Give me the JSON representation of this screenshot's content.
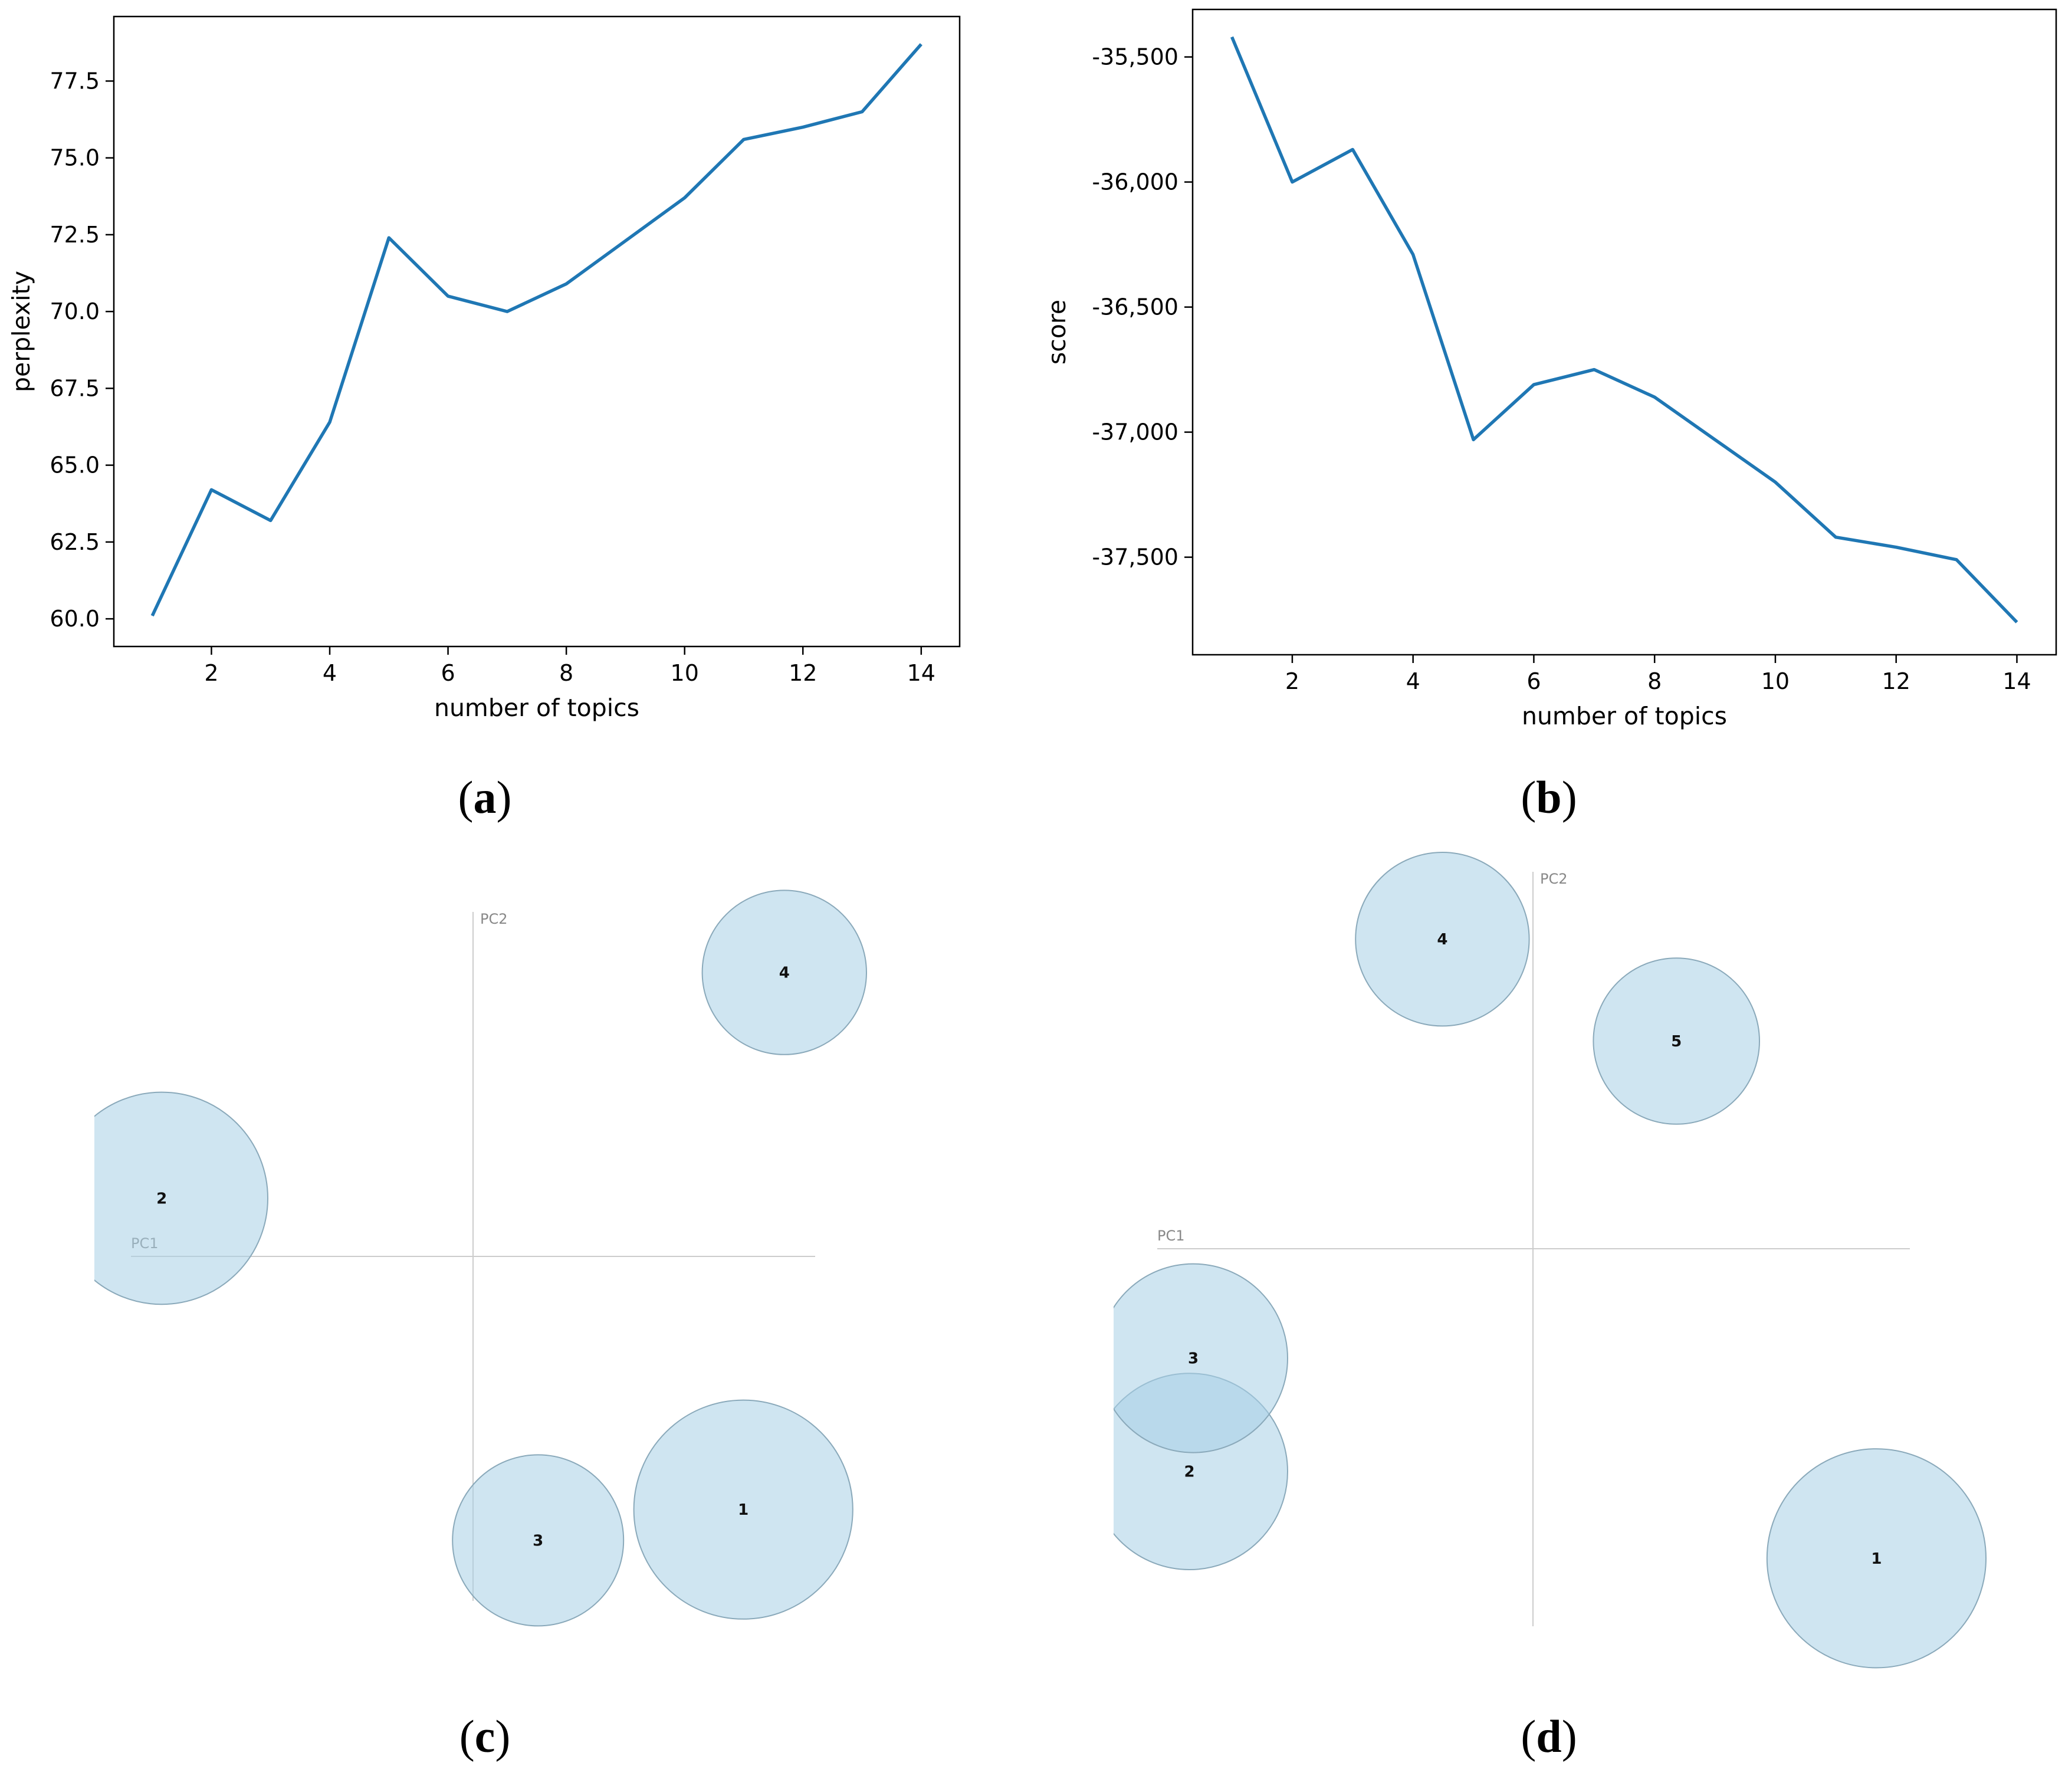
{
  "chart_data": [
    {
      "id": "a",
      "type": "line",
      "caption": "(a)",
      "caption_letter": "a",
      "xlabel": "number of topics",
      "ylabel": "perplexity",
      "xlim": [
        0.35,
        14.65
      ],
      "ylim": [
        59.1,
        79.6
      ],
      "xticks": [
        2,
        4,
        6,
        8,
        10,
        12,
        14
      ],
      "xtick_labels": [
        "2",
        "4",
        "6",
        "8",
        "10",
        "12",
        "14"
      ],
      "yticks": [
        60.0,
        62.5,
        65.0,
        67.5,
        70.0,
        72.5,
        75.0,
        77.5
      ],
      "ytick_labels": [
        "60.0",
        "62.5",
        "65.0",
        "67.5",
        "70.0",
        "72.5",
        "75.0",
        "77.5"
      ],
      "line_color": "#1f77b4",
      "x": [
        1,
        2,
        3,
        4,
        5,
        6,
        7,
        8,
        9,
        10,
        11,
        12,
        13,
        14
      ],
      "y": [
        60.1,
        64.2,
        63.2,
        66.4,
        72.4,
        70.5,
        70.0,
        70.9,
        72.3,
        73.7,
        75.6,
        76.0,
        76.5,
        78.7
      ]
    },
    {
      "id": "b",
      "type": "line",
      "caption": "(b)",
      "caption_letter": "b",
      "xlabel": "number of topics",
      "ylabel": "score",
      "xlim": [
        0.35,
        14.65
      ],
      "ylim": [
        -37890,
        -35310
      ],
      "xticks": [
        2,
        4,
        6,
        8,
        10,
        12,
        14
      ],
      "xtick_labels": [
        "2",
        "4",
        "6",
        "8",
        "10",
        "12",
        "14"
      ],
      "yticks": [
        -37500,
        -37000,
        -36500,
        -36000,
        -35500
      ],
      "ytick_labels": [
        "-37,500",
        "-37,000",
        "-36,500",
        "-36,000",
        "-35,500"
      ],
      "line_color": "#1f77b4",
      "x": [
        1,
        2,
        3,
        4,
        5,
        6,
        7,
        8,
        9,
        10,
        11,
        12,
        13,
        14
      ],
      "y": [
        -35420,
        -36000,
        -35870,
        -36290,
        -37030,
        -36810,
        -36750,
        -36860,
        -37030,
        -37200,
        -37420,
        -37460,
        -37510,
        -37760
      ]
    },
    {
      "id": "c",
      "type": "scatter",
      "caption": "(c)",
      "caption_letter": "c",
      "xlabel": "PC1",
      "ylabel": "PC2",
      "xlim": [
        -1,
        1
      ],
      "ylim": [
        -1,
        1
      ],
      "bubble_color": "#a8cfe5",
      "bubble_edge": "#8aa9ba",
      "points": [
        {
          "label": "1",
          "x": 0.79,
          "y": -0.74,
          "r": 0.32
        },
        {
          "label": "2",
          "x": -0.91,
          "y": 0.17,
          "r": 0.31
        },
        {
          "label": "3",
          "x": 0.19,
          "y": -0.83,
          "r": 0.25
        },
        {
          "label": "4",
          "x": 0.91,
          "y": 0.83,
          "r": 0.24
        }
      ]
    },
    {
      "id": "d",
      "type": "scatter",
      "caption": "(d)",
      "caption_letter": "d",
      "xlabel": "PC1",
      "ylabel": "PC2",
      "xlim": [
        -1,
        1
      ],
      "ylim": [
        -1,
        1
      ],
      "bubble_color": "#a8cfe5",
      "bubble_edge": "#8aa9ba",
      "points": [
        {
          "label": "1",
          "x": 0.91,
          "y": -0.82,
          "r": 0.29
        },
        {
          "label": "2",
          "x": -0.91,
          "y": -0.59,
          "r": 0.26
        },
        {
          "label": "3",
          "x": -0.9,
          "y": -0.29,
          "r": 0.25
        },
        {
          "label": "4",
          "x": -0.24,
          "y": 0.82,
          "r": 0.23
        },
        {
          "label": "5",
          "x": 0.38,
          "y": 0.55,
          "r": 0.22
        }
      ]
    }
  ]
}
